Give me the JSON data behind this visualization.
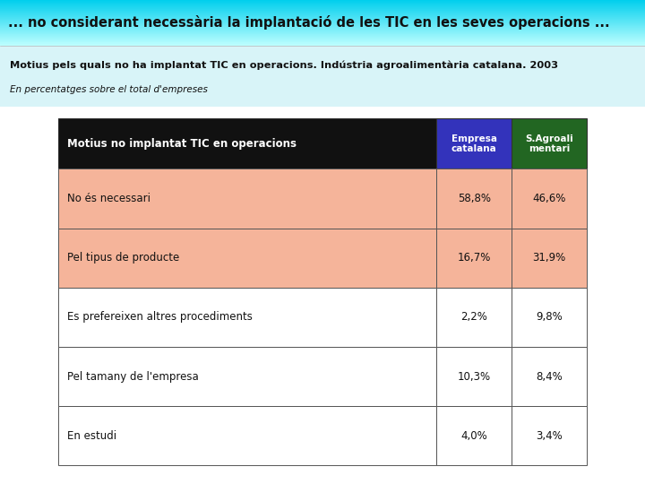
{
  "header_title": "... no considerant necessària la implantació de les TIC en les seves operacions ...",
  "header_bg_top": "#00cfee",
  "header_bg_bottom": "#aaeeff",
  "subtitle_line1": "Motius pels quals no ha implantat TIC en operacions. Indústria agroalimentària catalana. 2003",
  "subtitle_line2": "En percentatges sobre el total d'empreses",
  "subtitle_bg": "#d8f4f8",
  "table_header_label": "Motius no implantat TIC en operacions",
  "col1_header": "Empresa\ncatalana",
  "col2_header": "S.Agroali\nmentari",
  "col1_header_bg": "#3333bb",
  "col2_header_bg": "#226622",
  "table_header_text_color": "#ffffff",
  "table_header_bg": "#111111",
  "rows": [
    {
      "label": "No és necessari",
      "col1": "58,8%",
      "col2": "46,6%",
      "bg": "#f5b49a"
    },
    {
      "label": "Pel tipus de producte",
      "col1": "16,7%",
      "col2": "31,9%",
      "bg": "#f5b49a"
    },
    {
      "label": "Es prefereixen altres procediments",
      "col1": "2,2%",
      "col2": "9,8%",
      "bg": "#ffffff"
    },
    {
      "label": "Pel tamany de l'empresa",
      "col1": "10,3%",
      "col2": "8,4%",
      "bg": "#ffffff"
    },
    {
      "label": "En estudi",
      "col1": "4,0%",
      "col2": "3,4%",
      "bg": "#ffffff"
    }
  ],
  "outer_bg": "#ffffff",
  "fig_width": 7.2,
  "fig_height": 5.4,
  "dpi": 100
}
